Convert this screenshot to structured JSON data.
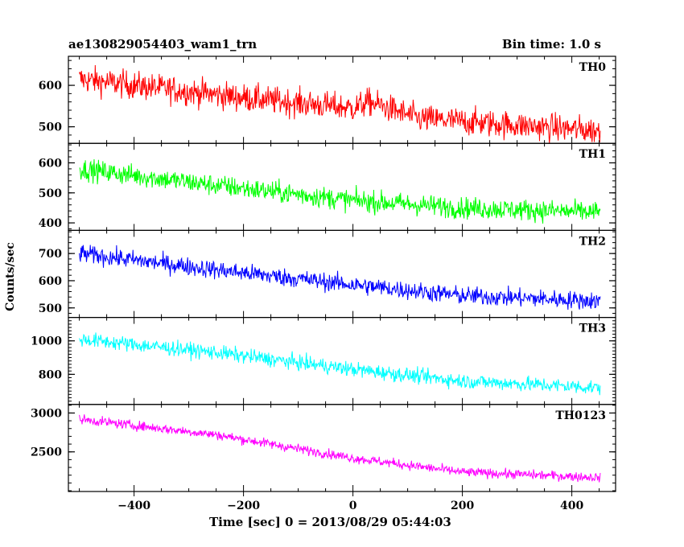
{
  "chart_data": {
    "type": "line",
    "title": "ae130829054403_wam1_trn",
    "bin_time": "Bin time: 1.0 s",
    "xlabel": "Time [sec] 0 = 2013/08/29 05:44:03",
    "ylabel": "Counts/sec",
    "xlim": [
      -520,
      480
    ],
    "xticks": [
      -400,
      -200,
      0,
      200,
      400
    ],
    "x_start": -500,
    "x_end": 452,
    "x_step": 1,
    "grid": false,
    "panels": [
      {
        "name": "TH0",
        "color": "#ff0000",
        "ylim": [
          460,
          670
        ],
        "yticks": [
          500,
          600
        ],
        "trend": [
          [
            -500,
            615
          ],
          [
            -200,
            570
          ],
          [
            0,
            545
          ],
          [
            30,
            560
          ],
          [
            120,
            520
          ],
          [
            452,
            490
          ]
        ],
        "noise_amplitude": 30
      },
      {
        "name": "TH1",
        "color": "#00ff00",
        "ylim": [
          375,
          665
        ],
        "yticks": [
          400,
          500,
          600
        ],
        "trend": [
          [
            -500,
            580
          ],
          [
            -250,
            525
          ],
          [
            0,
            475
          ],
          [
            200,
            450
          ],
          [
            452,
            435
          ]
        ],
        "noise_amplitude": 32
      },
      {
        "name": "TH2",
        "color": "#0000ff",
        "ylim": [
          465,
          785
        ],
        "yticks": [
          500,
          600,
          700
        ],
        "trend": [
          [
            -500,
            700
          ],
          [
            -250,
            640
          ],
          [
            0,
            585
          ],
          [
            200,
            545
          ],
          [
            452,
            525
          ]
        ],
        "noise_amplitude": 30
      },
      {
        "name": "TH3",
        "color": "#00ffff",
        "ylim": [
          620,
          1140
        ],
        "yticks": [
          800,
          1000
        ],
        "trend": [
          [
            -500,
            1010
          ],
          [
            -250,
            930
          ],
          [
            0,
            830
          ],
          [
            200,
            760
          ],
          [
            452,
            720
          ]
        ],
        "noise_amplitude": 40
      },
      {
        "name": "TH0123",
        "color": "#ff00ff",
        "ylim": [
          1990,
          3110
        ],
        "yticks": [
          2500,
          3000
        ],
        "trend": [
          [
            -500,
            2920
          ],
          [
            -250,
            2720
          ],
          [
            0,
            2420
          ],
          [
            200,
            2240
          ],
          [
            452,
            2170
          ]
        ],
        "noise_amplitude": 55
      }
    ]
  }
}
